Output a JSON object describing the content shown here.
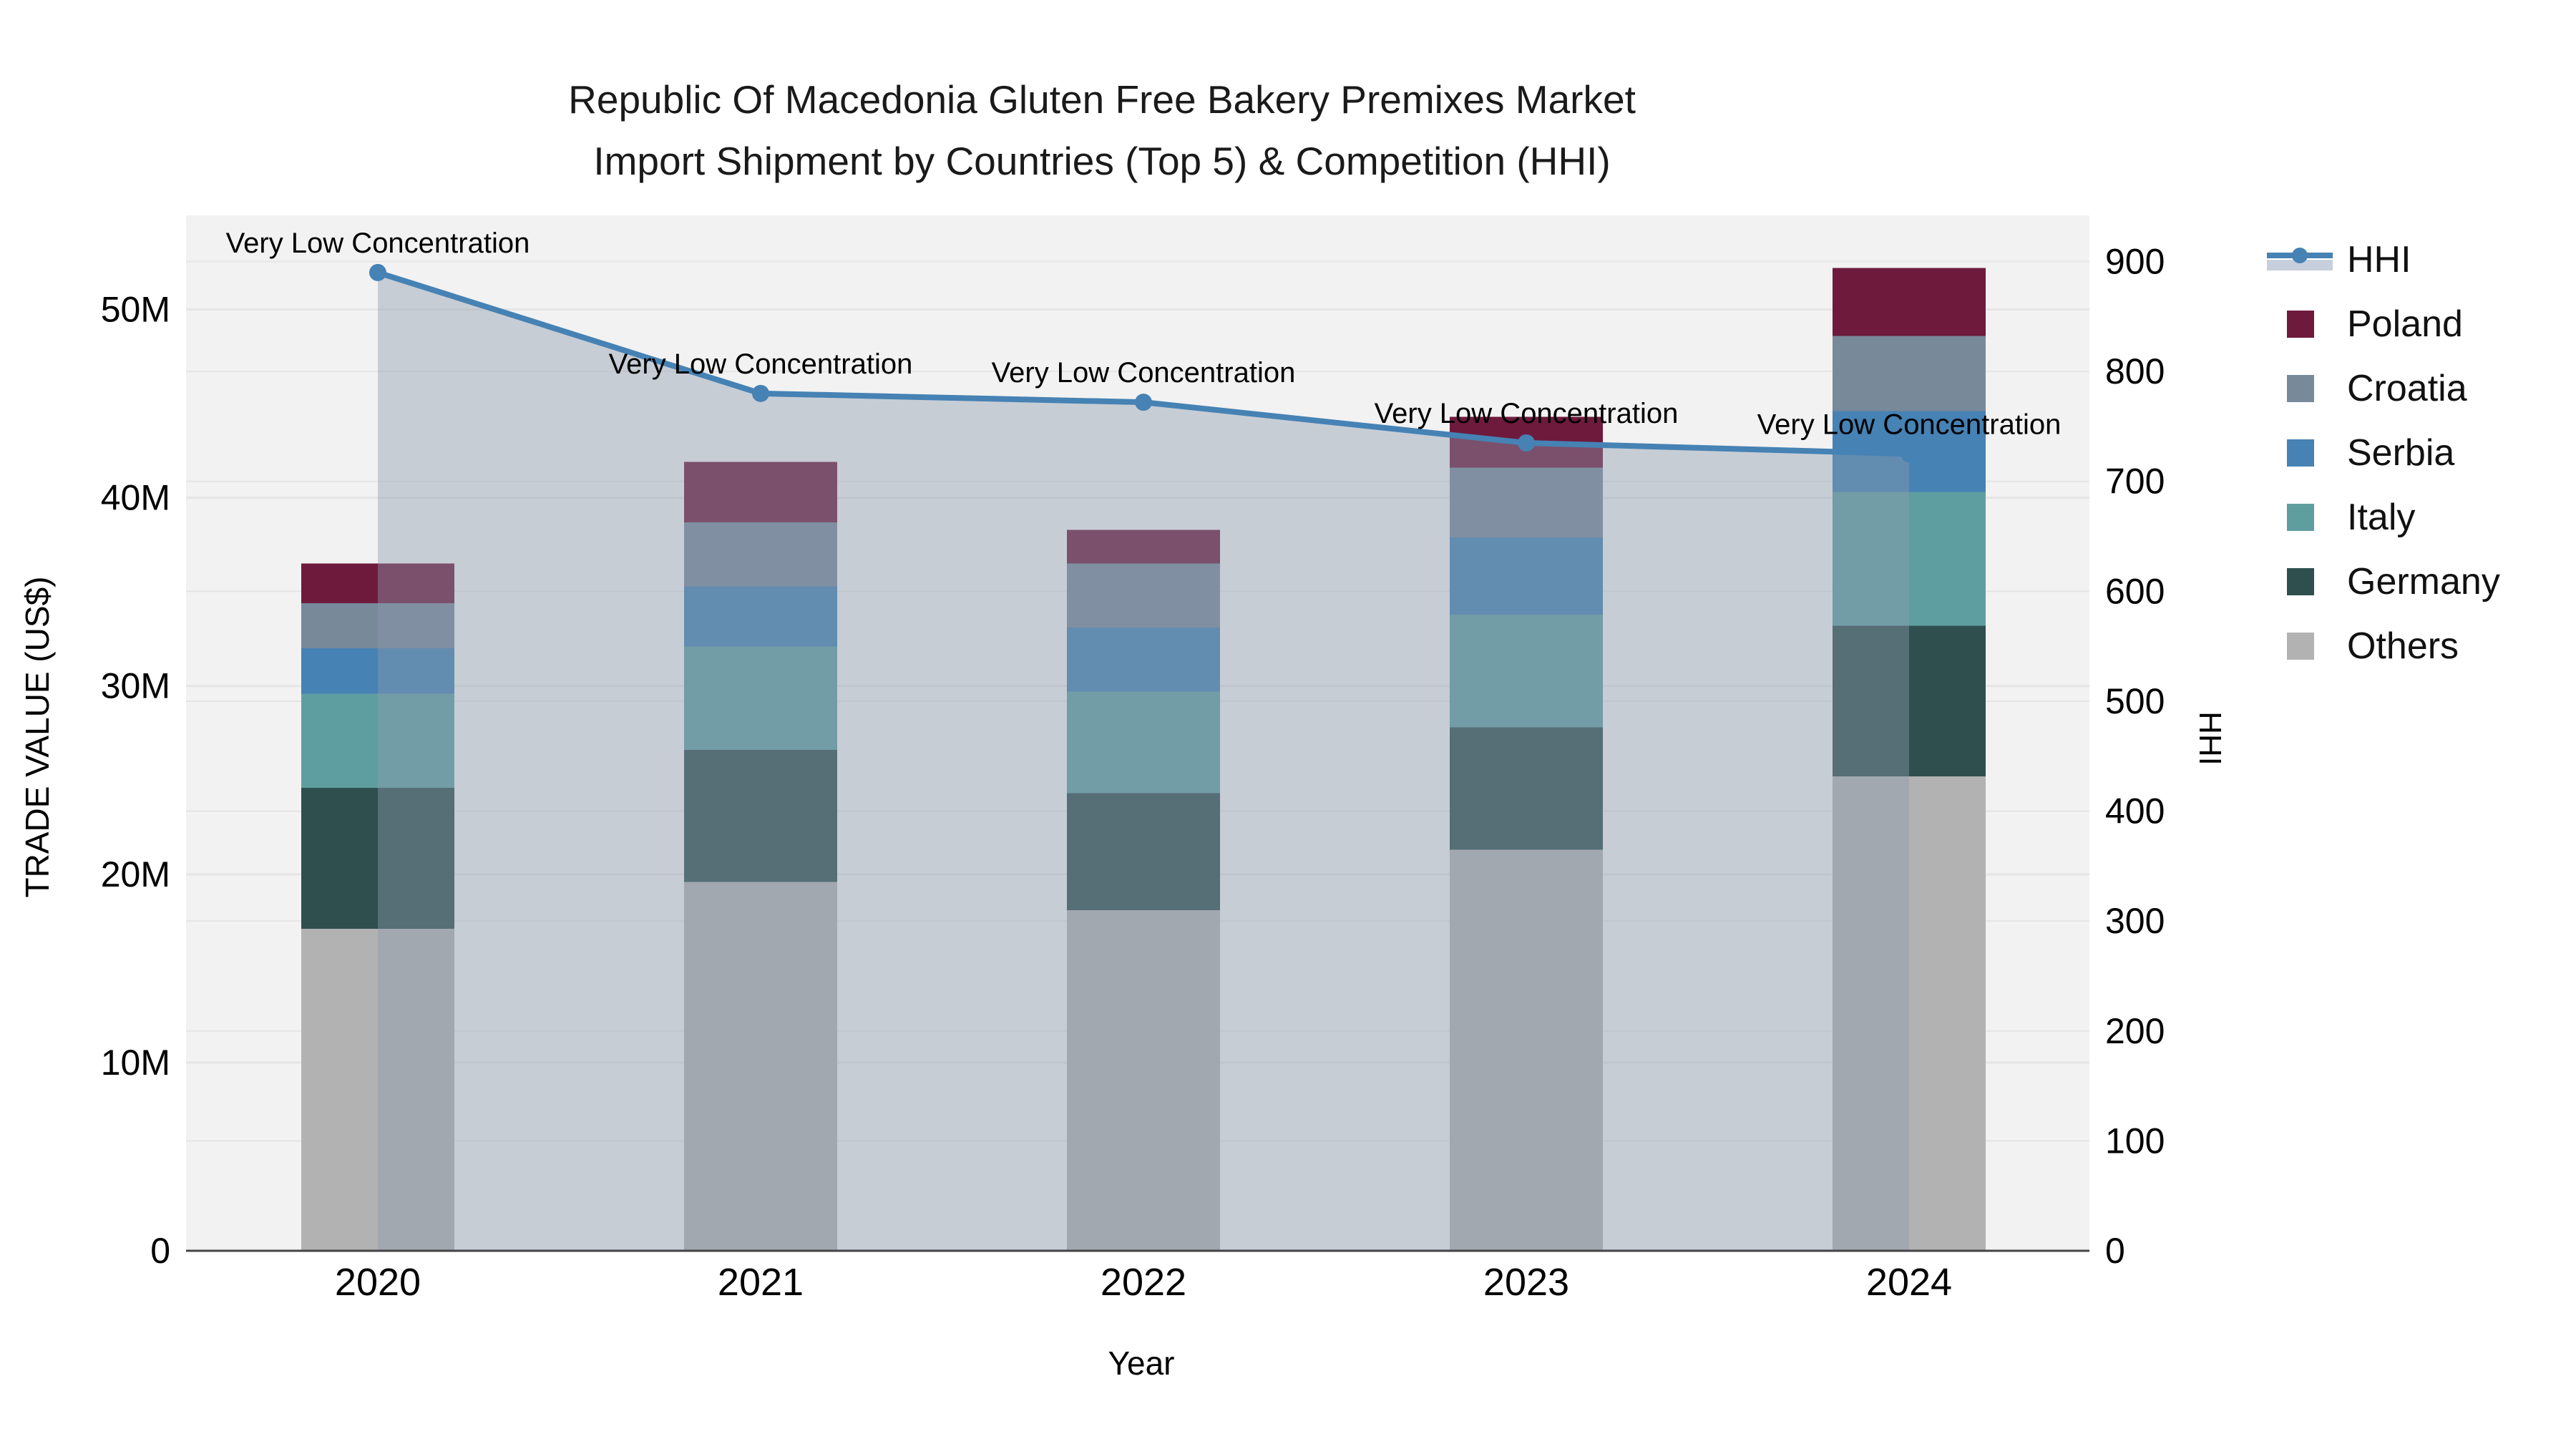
{
  "title": {
    "line1": "Republic Of Macedonia Gluten Free Bakery Premixes Market",
    "line2": "Import Shipment by Countries (Top 5) & Competition (HHI)"
  },
  "axis_titles": {
    "x": "Year",
    "y_left": "TRADE VALUE (US$)",
    "y_right": "HHI"
  },
  "annotation_text": "Very Low Concentration",
  "colors": {
    "plot_background": "#f2f2f2",
    "gridline": "#e5e5e5",
    "axis_line": "#444444",
    "hhi_line": "#4682b4",
    "area_fill": "rgba(140,155,175,0.42)",
    "poland": "#6e1a3d",
    "croatia": "#78899a",
    "serbia": "#4682b4",
    "italy": "#5f9ea0",
    "germany": "#2f4f4f",
    "others": "#b2b2b2"
  },
  "legend": [
    {
      "label": "HHI",
      "type": "line",
      "color": "#4682b4"
    },
    {
      "label": "Poland",
      "type": "swatch",
      "color": "#6e1a3d"
    },
    {
      "label": "Croatia",
      "type": "swatch",
      "color": "#78899a"
    },
    {
      "label": "Serbia",
      "type": "swatch",
      "color": "#4682b4"
    },
    {
      "label": "Italy",
      "type": "swatch",
      "color": "#5f9ea0"
    },
    {
      "label": "Germany",
      "type": "swatch",
      "color": "#2f4f4f"
    },
    {
      "label": "Others",
      "type": "swatch",
      "color": "#b2b2b2"
    }
  ],
  "chart_data": {
    "type": [
      "bar",
      "line"
    ],
    "title": "Republic Of Macedonia Gluten Free Bakery Premixes Market Import Shipment by Countries (Top 5) & Competition (HHI)",
    "categories": [
      "2020",
      "2021",
      "2022",
      "2023",
      "2024"
    ],
    "xlabel": "Year",
    "bar_value_unit": "million US$",
    "stack_order_bottom_to_top": [
      "Others",
      "Germany",
      "Italy",
      "Serbia",
      "Croatia",
      "Poland"
    ],
    "series": [
      {
        "name": "Others",
        "color": "#b2b2b2",
        "values": [
          17.1,
          19.6,
          18.1,
          21.3,
          25.2
        ]
      },
      {
        "name": "Germany",
        "color": "#2f4f4f",
        "values": [
          7.5,
          7.0,
          6.2,
          6.5,
          8.0
        ]
      },
      {
        "name": "Italy",
        "color": "#5f9ea0",
        "values": [
          5.0,
          5.5,
          5.4,
          6.0,
          7.1
        ]
      },
      {
        "name": "Serbia",
        "color": "#4682b4",
        "values": [
          2.4,
          3.2,
          3.4,
          4.1,
          4.3
        ]
      },
      {
        "name": "Croatia",
        "color": "#78899a",
        "values": [
          2.4,
          3.4,
          3.4,
          3.7,
          4.0
        ]
      },
      {
        "name": "Poland",
        "color": "#6e1a3d",
        "values": [
          2.1,
          3.2,
          1.8,
          2.7,
          3.6
        ]
      }
    ],
    "bar_totals": [
      36.5,
      41.9,
      38.3,
      44.3,
      52.2
    ],
    "line_series": {
      "name": "HHI",
      "color": "#4682b4",
      "values": [
        890,
        780,
        772,
        735,
        725
      ],
      "area_under_line": true,
      "annotations": [
        "Very Low Concentration",
        "Very Low Concentration",
        "Very Low Concentration",
        "Very Low Concentration",
        "Very Low Concentration"
      ]
    },
    "y_left": {
      "label": "TRADE VALUE (US$)",
      "tick_labels": [
        "0",
        "10M",
        "20M",
        "30M",
        "40M",
        "50M"
      ],
      "tick_values_millions": [
        0,
        10,
        20,
        30,
        40,
        50
      ],
      "axis_max_millions": 55
    },
    "y_right": {
      "label": "HHI",
      "tick_labels": [
        "0",
        "100",
        "200",
        "300",
        "400",
        "500",
        "600",
        "700",
        "800",
        "900"
      ],
      "tick_values": [
        0,
        100,
        200,
        300,
        400,
        500,
        600,
        700,
        800,
        900
      ],
      "axis_max": 942
    },
    "grid": true,
    "legend_position": "right"
  }
}
